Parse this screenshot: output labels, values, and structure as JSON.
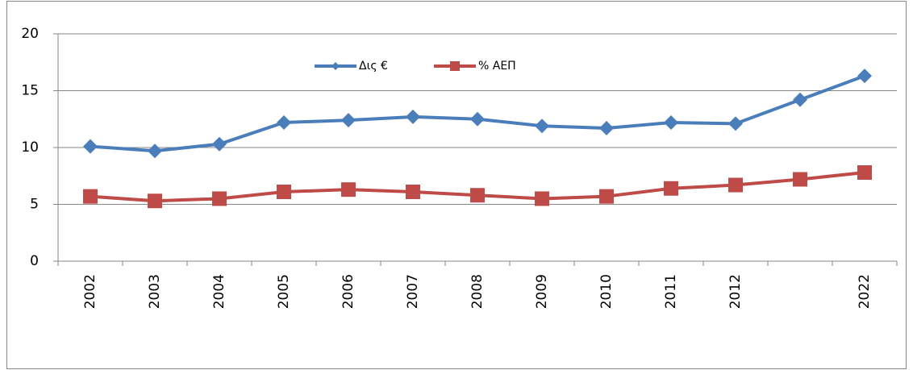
{
  "chart_data": {
    "type": "line",
    "categories": [
      "2002",
      "2003",
      "2004",
      "2005",
      "2006",
      "2007",
      "2008",
      "2009",
      "2010",
      "2011",
      "2012",
      null,
      "2022"
    ],
    "series": [
      {
        "name": "Δις €",
        "color": "#4a7ebb",
        "marker": "diamond",
        "values": [
          10.1,
          9.7,
          10.3,
          12.2,
          12.4,
          12.7,
          12.5,
          11.9,
          11.7,
          12.2,
          12.1,
          14.2,
          16.3
        ]
      },
      {
        "name": "% ΑΕΠ",
        "color": "#be4b48",
        "marker": "square",
        "values": [
          5.7,
          5.3,
          5.5,
          6.1,
          6.3,
          6.1,
          5.8,
          5.5,
          5.7,
          6.4,
          6.7,
          7.2,
          7.8
        ]
      }
    ],
    "ylim": [
      0,
      20
    ],
    "yticks": [
      0,
      5,
      10,
      15,
      20
    ],
    "grid": true
  }
}
